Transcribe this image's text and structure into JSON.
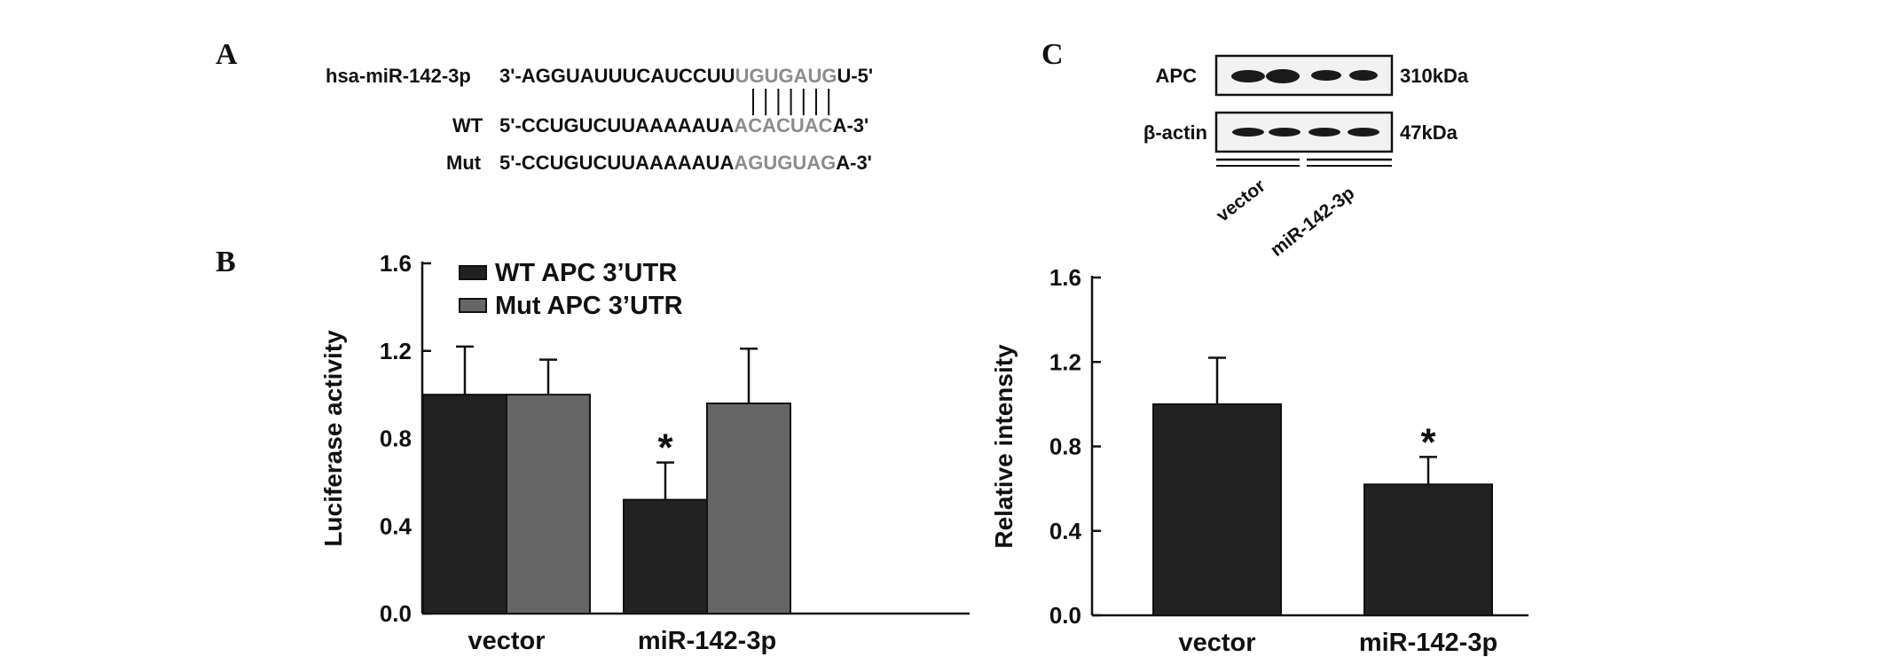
{
  "panel_letters": [
    "A",
    "B",
    "C"
  ],
  "sequences": {
    "mir": {
      "name": "hsa-miR-142-3p",
      "parts": [
        {
          "t": "3'-AGGUAUUUCAUCCUU",
          "hl": false
        },
        {
          "t": "UGUGAUG",
          "hl": true
        },
        {
          "t": "U-5'",
          "hl": false
        }
      ]
    },
    "wt": {
      "name": "WT",
      "parts": [
        {
          "t": "5'-CCUGUCUUAAAAAUA",
          "hl": false
        },
        {
          "t": "ACACUAC",
          "hl": true
        },
        {
          "t": "A-3'",
          "hl": false
        }
      ]
    },
    "mut": {
      "name": "Mut",
      "parts": [
        {
          "t": "5'-CCUGUCUUAAAAAUA",
          "hl": false
        },
        {
          "t": "AGUGUAG",
          "hl": true
        },
        {
          "t": "A-3'",
          "hl": false
        }
      ]
    },
    "pairing_lines": 7,
    "highlight_color": "#8c8c8c"
  },
  "western_blot": {
    "proteins": [
      {
        "name": "APC",
        "size": "310kDa"
      },
      {
        "name": "β-actin",
        "size": "47kDa"
      }
    ],
    "lane_groups": [
      "vector",
      "miR-142-3p"
    ],
    "lanes_per_group": 2
  },
  "chart_data": [
    {
      "type": "bar",
      "panel": "B",
      "ylabel": "Luciferase activity",
      "categories": [
        "vector",
        "miR-142-3p"
      ],
      "ylim": [
        0,
        1.6
      ],
      "yticks": [
        "0.0",
        "0.4",
        "0.8",
        "1.2",
        "1.6"
      ],
      "series": [
        {
          "name": "WT APC 3’UTR",
          "color": "#222222",
          "values": [
            1.0,
            0.52
          ],
          "errors": [
            0.22,
            0.17
          ]
        },
        {
          "name": "Mut APC 3’UTR",
          "color": "#666666",
          "values": [
            1.0,
            0.96
          ],
          "errors": [
            0.16,
            0.25
          ]
        }
      ],
      "significance": [
        {
          "category": "miR-142-3p",
          "series": "WT APC 3’UTR",
          "mark": "*"
        }
      ],
      "legend": "top-left",
      "grid": false
    },
    {
      "type": "bar",
      "panel": "C",
      "ylabel": "Relative intensity",
      "categories": [
        "vector",
        "miR-142-3p"
      ],
      "ylim": [
        0,
        1.6
      ],
      "yticks": [
        "0.0",
        "0.4",
        "0.8",
        "1.2",
        "1.6"
      ],
      "series": [
        {
          "color": "#222222",
          "values": [
            1.0,
            0.62
          ],
          "errors": [
            0.22,
            0.13
          ]
        }
      ],
      "significance": [
        {
          "category": "miR-142-3p",
          "mark": "*"
        }
      ],
      "grid": false
    }
  ]
}
